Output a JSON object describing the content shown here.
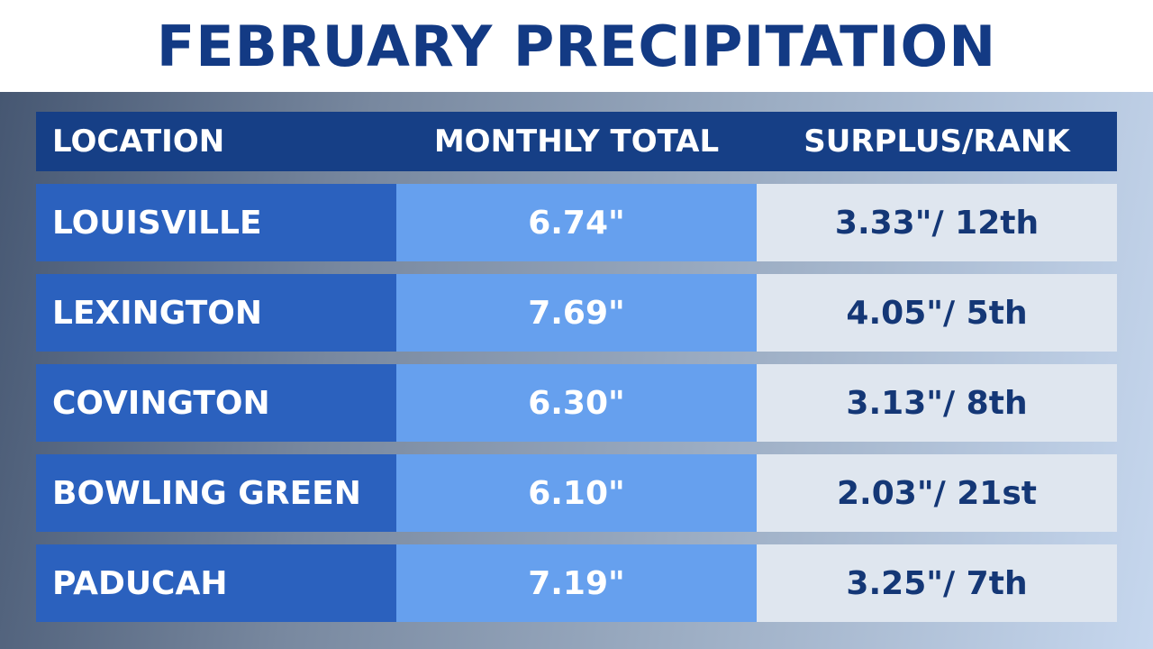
{
  "title": "FEBRUARY PRECIPITATION",
  "colors": {
    "title_text": "#133a84",
    "header_bg": "#163f86",
    "location_bg": "#2b61be",
    "total_bg": "#66a0ee",
    "surplus_bg": "#dfe6ef",
    "surplus_text": "#143776"
  },
  "chart_data": {
    "type": "table",
    "title": "FEBRUARY PRECIPITATION",
    "columns": [
      "LOCATION",
      "MONTHLY TOTAL",
      "SURPLUS/RANK"
    ],
    "rows": [
      {
        "location": "LOUISVILLE",
        "total": "6.74\"",
        "surplus_rank": "3.33\"/ 12th"
      },
      {
        "location": "LEXINGTON",
        "total": "7.69\"",
        "surplus_rank": "4.05\"/ 5th"
      },
      {
        "location": "COVINGTON",
        "total": "6.30\"",
        "surplus_rank": "3.13\"/ 8th"
      },
      {
        "location": "BOWLING GREEN",
        "total": "6.10\"",
        "surplus_rank": "2.03\"/ 21st"
      },
      {
        "location": "PADUCAH",
        "total": "7.19\"",
        "surplus_rank": "3.25\"/ 7th"
      }
    ]
  }
}
